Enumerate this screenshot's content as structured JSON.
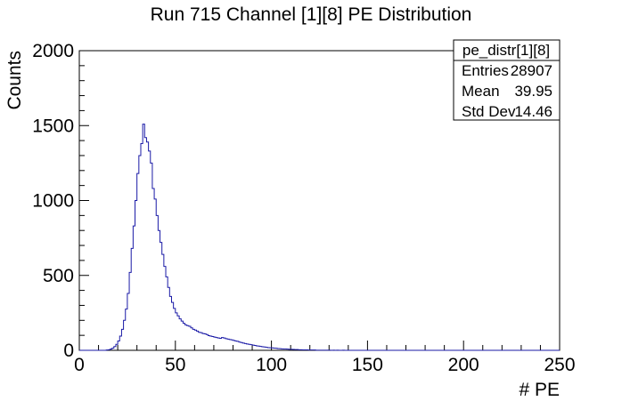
{
  "chart_data": {
    "type": "histogram",
    "title": "Run 715 Channel [1][8] PE Distribution",
    "xlabel": "# PE",
    "ylabel": "Counts",
    "xlim": [
      0,
      250
    ],
    "ylim": [
      0,
      2000
    ],
    "x_ticks": [
      0,
      50,
      100,
      150,
      200,
      250
    ],
    "y_ticks": [
      0,
      500,
      1000,
      1500,
      2000
    ],
    "bin_width": 1,
    "line_color": "#1a1aa6",
    "bins": [
      [
        0,
        0
      ],
      [
        1,
        0
      ],
      [
        2,
        0
      ],
      [
        3,
        0
      ],
      [
        4,
        0
      ],
      [
        5,
        0
      ],
      [
        6,
        0
      ],
      [
        7,
        0
      ],
      [
        8,
        0
      ],
      [
        9,
        0
      ],
      [
        10,
        0
      ],
      [
        11,
        0
      ],
      [
        12,
        0
      ],
      [
        13,
        0
      ],
      [
        14,
        2
      ],
      [
        15,
        4
      ],
      [
        16,
        8
      ],
      [
        17,
        14
      ],
      [
        18,
        25
      ],
      [
        19,
        40
      ],
      [
        20,
        62
      ],
      [
        21,
        95
      ],
      [
        22,
        140
      ],
      [
        23,
        200
      ],
      [
        24,
        275
      ],
      [
        25,
        380
      ],
      [
        26,
        520
      ],
      [
        27,
        680
      ],
      [
        28,
        830
      ],
      [
        29,
        1000
      ],
      [
        30,
        1180
      ],
      [
        31,
        1300
      ],
      [
        32,
        1380
      ],
      [
        33,
        1510
      ],
      [
        34,
        1420
      ],
      [
        35,
        1390
      ],
      [
        36,
        1330
      ],
      [
        37,
        1250
      ],
      [
        38,
        1080
      ],
      [
        39,
        1010
      ],
      [
        40,
        900
      ],
      [
        41,
        800
      ],
      [
        42,
        720
      ],
      [
        43,
        640
      ],
      [
        44,
        560
      ],
      [
        45,
        490
      ],
      [
        46,
        420
      ],
      [
        47,
        360
      ],
      [
        48,
        320
      ],
      [
        49,
        280
      ],
      [
        50,
        250
      ],
      [
        51,
        230
      ],
      [
        52,
        210
      ],
      [
        53,
        195
      ],
      [
        54,
        180
      ],
      [
        55,
        170
      ],
      [
        56,
        165
      ],
      [
        57,
        160
      ],
      [
        58,
        150
      ],
      [
        59,
        140
      ],
      [
        60,
        135
      ],
      [
        61,
        128
      ],
      [
        62,
        120
      ],
      [
        63,
        118
      ],
      [
        64,
        112
      ],
      [
        65,
        110
      ],
      [
        66,
        105
      ],
      [
        67,
        98
      ],
      [
        68,
        95
      ],
      [
        69,
        92
      ],
      [
        70,
        88
      ],
      [
        71,
        85
      ],
      [
        72,
        82
      ],
      [
        73,
        80
      ],
      [
        74,
        85
      ],
      [
        75,
        82
      ],
      [
        76,
        78
      ],
      [
        77,
        75
      ],
      [
        78,
        72
      ],
      [
        79,
        70
      ],
      [
        80,
        66
      ],
      [
        81,
        62
      ],
      [
        82,
        60
      ],
      [
        83,
        55
      ],
      [
        84,
        52
      ],
      [
        85,
        48
      ],
      [
        86,
        45
      ],
      [
        87,
        42
      ],
      [
        88,
        40
      ],
      [
        89,
        38
      ],
      [
        90,
        35
      ],
      [
        91,
        33
      ],
      [
        92,
        30
      ],
      [
        93,
        28
      ],
      [
        94,
        26
      ],
      [
        95,
        24
      ],
      [
        96,
        22
      ],
      [
        97,
        20
      ],
      [
        98,
        18
      ],
      [
        99,
        17
      ],
      [
        100,
        16
      ],
      [
        101,
        15
      ],
      [
        102,
        14
      ],
      [
        103,
        12
      ],
      [
        104,
        11
      ],
      [
        105,
        10
      ],
      [
        106,
        9
      ],
      [
        107,
        9
      ],
      [
        108,
        8
      ],
      [
        109,
        7
      ],
      [
        110,
        7
      ],
      [
        111,
        6
      ],
      [
        112,
        5
      ],
      [
        113,
        5
      ],
      [
        114,
        4
      ],
      [
        115,
        4
      ],
      [
        116,
        3
      ],
      [
        117,
        3
      ],
      [
        118,
        3
      ],
      [
        119,
        2
      ],
      [
        120,
        2
      ],
      [
        121,
        2
      ],
      [
        122,
        2
      ],
      [
        123,
        1
      ],
      [
        124,
        1
      ],
      [
        125,
        1
      ],
      [
        126,
        1
      ],
      [
        127,
        1
      ],
      [
        128,
        1
      ],
      [
        129,
        1
      ],
      [
        130,
        1
      ],
      [
        131,
        0
      ],
      [
        132,
        1
      ],
      [
        133,
        0
      ],
      [
        134,
        1
      ],
      [
        135,
        0
      ],
      [
        136,
        0
      ],
      [
        137,
        1
      ],
      [
        138,
        0
      ],
      [
        139,
        0
      ],
      [
        140,
        0
      ]
    ]
  },
  "stats_box": {
    "name": "pe_distr[1][8]",
    "rows": [
      {
        "label": "Entries",
        "value": "28907"
      },
      {
        "label": "Mean",
        "value": "39.95"
      },
      {
        "label": "Std Dev",
        "value": "14.46"
      }
    ]
  }
}
